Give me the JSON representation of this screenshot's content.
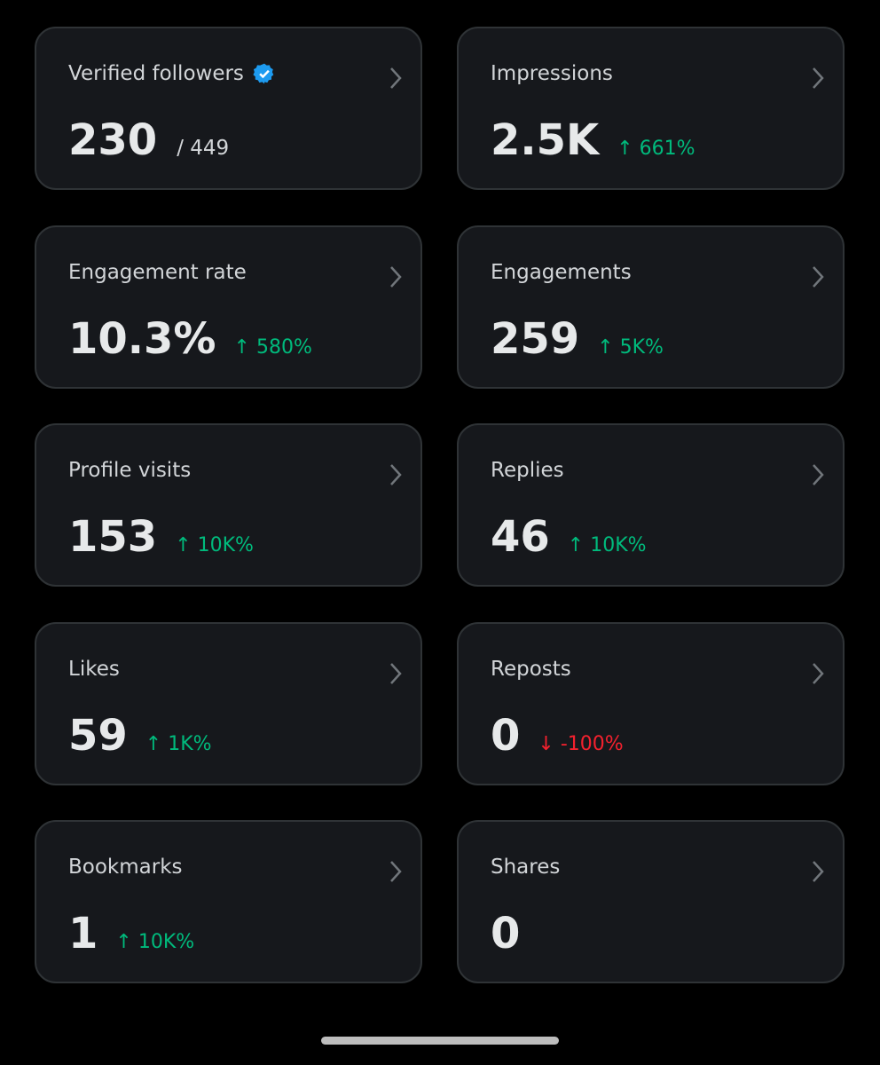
{
  "cards": [
    {
      "label": "Verified followers",
      "verified": true,
      "value": "230",
      "secondary": "/ 449"
    },
    {
      "label": "Impressions",
      "value": "2.5K",
      "change": "↑ 661%",
      "change_color": "#00ba7c"
    },
    {
      "label": "Engagement rate",
      "value": "10.3%",
      "change": "↑ 580%",
      "change_color": "#00ba7c"
    },
    {
      "label": "Engagements",
      "value": "259",
      "change": "↑ 5K%",
      "change_color": "#00ba7c"
    },
    {
      "label": "Profile visits",
      "value": "153",
      "change": "↑ 10K%",
      "change_color": "#00ba7c"
    },
    {
      "label": "Replies",
      "value": "46",
      "change": "↑ 10K%",
      "change_color": "#00ba7c"
    },
    {
      "label": "Likes",
      "value": "59",
      "change": "↑ 1K%",
      "change_color": "#00ba7c"
    },
    {
      "label": "Reposts",
      "value": "0",
      "change": "↓ -100%",
      "change_color": "#f4212e"
    },
    {
      "label": "Bookmarks",
      "value": "1",
      "change": "↑ 10K%",
      "change_color": "#00ba7c"
    },
    {
      "label": "Shares",
      "value": "0"
    }
  ]
}
